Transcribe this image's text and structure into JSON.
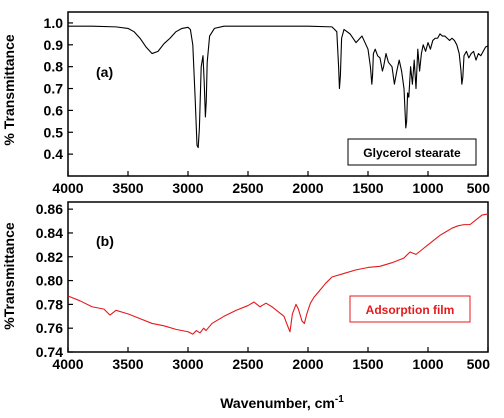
{
  "chart_data": [
    {
      "type": "line",
      "panel_label": "(a)",
      "legend_label": "Glycerol stearate",
      "legend_placement": "bottom-right",
      "ylabel": "% Transmittance",
      "xlabel": "",
      "xlim": [
        4000,
        500
      ],
      "ylim": [
        0.3,
        1.05
      ],
      "x_ticks": [
        "4000",
        "3500",
        "3000",
        "2500",
        "2000",
        "1500",
        "1000",
        "500"
      ],
      "y_ticks": [
        "0.4",
        "0.5",
        "0.6",
        "0.7",
        "0.8",
        "0.9",
        "1.0"
      ],
      "grid": false,
      "series": [
        {
          "color": "#000000",
          "x": [
            4000,
            3800,
            3600,
            3500,
            3450,
            3400,
            3350,
            3300,
            3250,
            3200,
            3150,
            3100,
            3050,
            3000,
            2980,
            2960,
            2940,
            2925,
            2915,
            2905,
            2890,
            2875,
            2865,
            2855,
            2848,
            2840,
            2820,
            2780,
            2700,
            2500,
            2200,
            2000,
            1800,
            1760,
            1745,
            1738,
            1730,
            1720,
            1700,
            1650,
            1600,
            1550,
            1500,
            1480,
            1468,
            1462,
            1455,
            1440,
            1420,
            1400,
            1380,
            1370,
            1350,
            1330,
            1300,
            1280,
            1260,
            1240,
            1220,
            1200,
            1185,
            1178,
            1170,
            1160,
            1145,
            1130,
            1115,
            1100,
            1085,
            1070,
            1055,
            1040,
            1020,
            1000,
            980,
            960,
            940,
            920,
            900,
            880,
            860,
            840,
            820,
            800,
            780,
            760,
            740,
            725,
            718,
            710,
            700,
            680,
            660,
            640,
            620,
            600,
            580,
            560,
            540,
            520,
            500
          ],
          "values": [
            0.985,
            0.985,
            0.982,
            0.975,
            0.96,
            0.93,
            0.89,
            0.86,
            0.87,
            0.905,
            0.93,
            0.96,
            0.975,
            0.98,
            0.97,
            0.9,
            0.65,
            0.44,
            0.43,
            0.52,
            0.8,
            0.85,
            0.73,
            0.57,
            0.64,
            0.82,
            0.94,
            0.975,
            0.985,
            0.985,
            0.985,
            0.985,
            0.982,
            0.96,
            0.8,
            0.7,
            0.76,
            0.93,
            0.97,
            0.95,
            0.91,
            0.94,
            0.88,
            0.8,
            0.72,
            0.76,
            0.86,
            0.88,
            0.85,
            0.84,
            0.78,
            0.8,
            0.86,
            0.82,
            0.8,
            0.72,
            0.78,
            0.83,
            0.78,
            0.7,
            0.52,
            0.55,
            0.68,
            0.66,
            0.8,
            0.72,
            0.83,
            0.7,
            0.88,
            0.78,
            0.86,
            0.9,
            0.87,
            0.91,
            0.88,
            0.92,
            0.93,
            0.93,
            0.95,
            0.94,
            0.94,
            0.93,
            0.92,
            0.93,
            0.92,
            0.9,
            0.86,
            0.78,
            0.72,
            0.75,
            0.85,
            0.87,
            0.84,
            0.86,
            0.87,
            0.83,
            0.86,
            0.85,
            0.87,
            0.89,
            0.895
          ]
        }
      ]
    },
    {
      "type": "line",
      "panel_label": "(b)",
      "legend_label": "Adsorption film",
      "legend_placement": "center-right",
      "ylabel": "%Transmittance",
      "xlabel": "Wavenumber, cm",
      "xlabel_superscript": "-1",
      "xlim": [
        4000,
        500
      ],
      "ylim": [
        0.74,
        0.866
      ],
      "x_ticks": [
        "4000",
        "3500",
        "3000",
        "2500",
        "2000",
        "1500",
        "1000",
        "500"
      ],
      "y_ticks": [
        "0.74",
        "0.76",
        "0.78",
        "0.80",
        "0.82",
        "0.84",
        "0.86"
      ],
      "grid": false,
      "series": [
        {
          "color": "#e41a1c",
          "x": [
            4000,
            3900,
            3800,
            3700,
            3650,
            3600,
            3500,
            3400,
            3300,
            3200,
            3100,
            3000,
            2960,
            2930,
            2900,
            2870,
            2850,
            2800,
            2700,
            2600,
            2500,
            2450,
            2400,
            2350,
            2300,
            2250,
            2200,
            2170,
            2150,
            2130,
            2100,
            2080,
            2050,
            2030,
            2010,
            2000,
            1980,
            1950,
            1900,
            1850,
            1800,
            1700,
            1600,
            1500,
            1400,
            1300,
            1200,
            1150,
            1100,
            1050,
            1000,
            950,
            900,
            850,
            800,
            750,
            700,
            650,
            600,
            550,
            500
          ],
          "values": [
            0.787,
            0.783,
            0.778,
            0.776,
            0.771,
            0.775,
            0.772,
            0.768,
            0.764,
            0.762,
            0.759,
            0.757,
            0.755,
            0.758,
            0.756,
            0.76,
            0.758,
            0.764,
            0.77,
            0.775,
            0.779,
            0.782,
            0.778,
            0.781,
            0.778,
            0.774,
            0.77,
            0.762,
            0.757,
            0.772,
            0.78,
            0.776,
            0.766,
            0.764,
            0.772,
            0.775,
            0.781,
            0.786,
            0.792,
            0.798,
            0.803,
            0.806,
            0.809,
            0.811,
            0.812,
            0.815,
            0.819,
            0.824,
            0.822,
            0.826,
            0.83,
            0.834,
            0.838,
            0.841,
            0.844,
            0.846,
            0.847,
            0.847,
            0.851,
            0.855,
            0.856
          ]
        }
      ]
    }
  ]
}
